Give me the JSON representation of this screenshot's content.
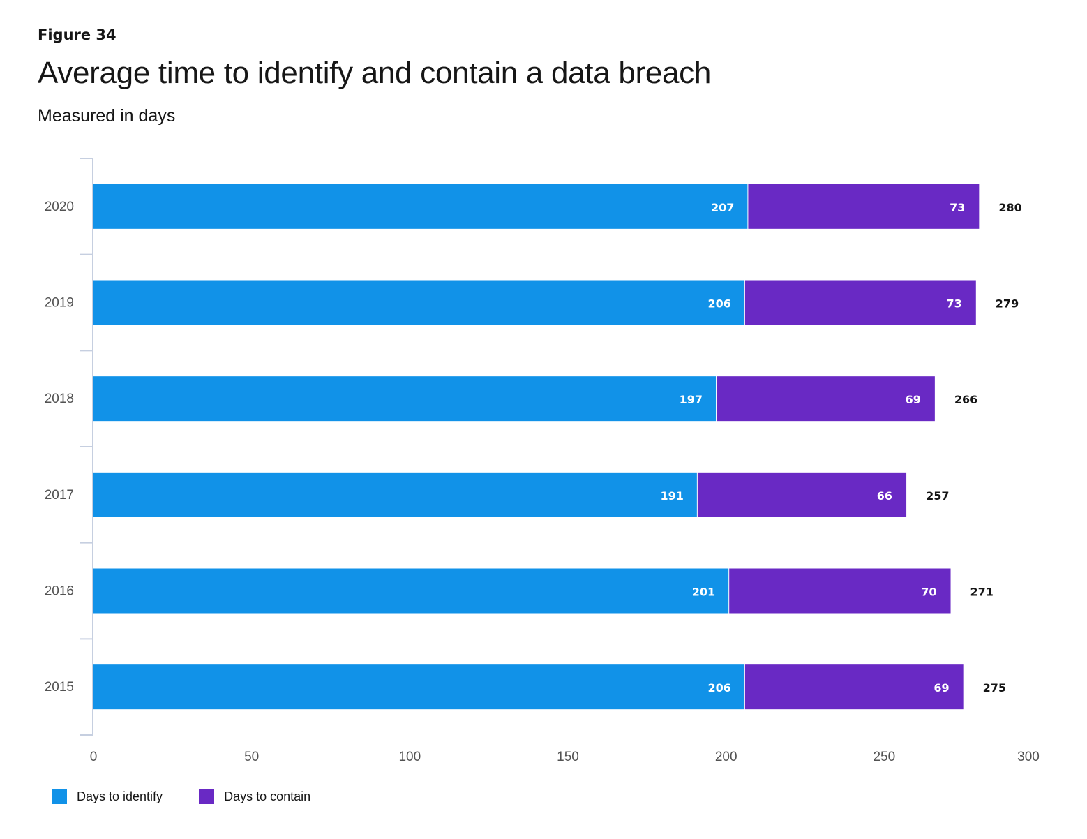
{
  "figure_label": "Figure 34",
  "chart_data": {
    "type": "bar",
    "orientation": "horizontal",
    "stacked": true,
    "title": "Average time to identify and contain a data breach",
    "subtitle": "Measured in days",
    "categories": [
      "2020",
      "2019",
      "2018",
      "2017",
      "2016",
      "2015"
    ],
    "series": [
      {
        "name": "Days to identify",
        "color": "#1192e8",
        "values": [
          207,
          206,
          197,
          191,
          201,
          206
        ]
      },
      {
        "name": "Days to contain",
        "color": "#6929c4",
        "values": [
          73,
          73,
          69,
          66,
          70,
          69
        ]
      }
    ],
    "totals": [
      280,
      279,
      266,
      257,
      271,
      275
    ],
    "xlim": [
      0,
      300
    ],
    "xticks": [
      0,
      50,
      100,
      150,
      200,
      250,
      300
    ],
    "grid": false,
    "legend": "bottom-left"
  }
}
